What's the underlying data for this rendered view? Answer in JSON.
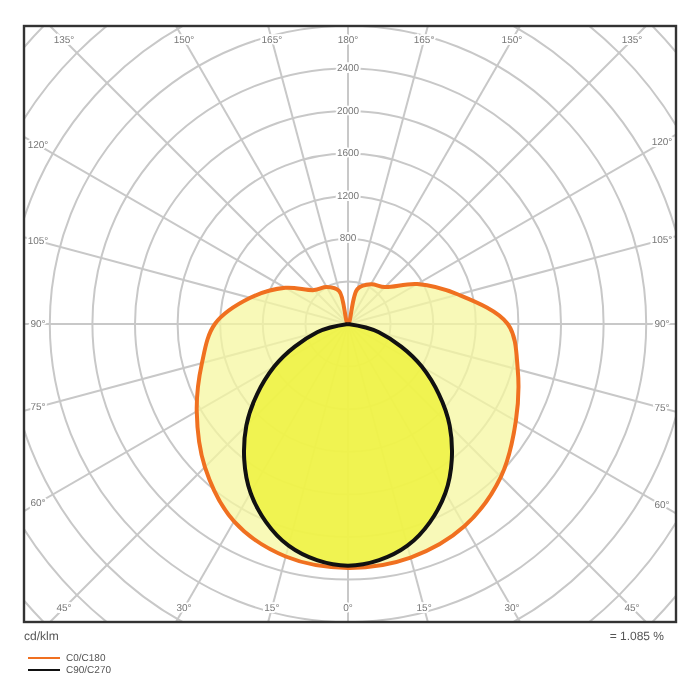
{
  "chart_data": {
    "type": "radar",
    "ylabel": "cd/klm",
    "annotations": [
      "= 1.085 %"
    ],
    "categories": [
      "180°",
      "165°",
      "150°",
      "135°",
      "120°",
      "105°",
      "90°",
      "75°",
      "60°",
      "45°",
      "30°",
      "15°",
      "0°",
      "15°",
      "30°",
      "45°",
      "60°",
      "75°",
      "90°",
      "105°",
      "120°",
      "135°",
      "150°",
      "165°"
    ],
    "series": [
      {
        "name": "C0/C180",
        "color": "#f07020",
        "values": [
          0,
          340,
          430,
          490,
          750,
          1070,
          1500,
          1650,
          1820,
          2030,
          2190,
          2270,
          2290,
          2260,
          2140,
          1900,
          1640,
          1420,
          1250,
          950,
          680,
          450,
          400,
          320
        ]
      },
      {
        "name": "C90/C270",
        "color": "#111111",
        "values": [
          0,
          0,
          0,
          0,
          0,
          0,
          0,
          300,
          800,
          1350,
          1830,
          2155,
          2270,
          2155,
          1830,
          1350,
          800,
          300,
          0,
          0,
          0,
          0,
          0,
          0
        ]
      }
    ],
    "ylim": [
      0,
      4000
    ],
    "yticks": [
      800,
      1200,
      1600,
      2000,
      2400
    ],
    "grid": true,
    "legend": "bottom"
  }
}
